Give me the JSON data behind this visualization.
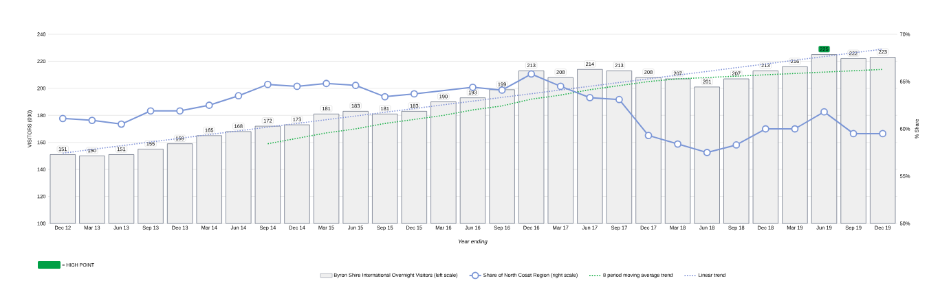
{
  "chart_data": {
    "type": "bar",
    "xlabel": "Year ending",
    "ylabel": "VISITORS (000)",
    "y2label": "% Share",
    "categories": [
      "Dec 12",
      "Mar 13",
      "Jun 13",
      "Sep 13",
      "Dec 13",
      "Mar 14",
      "Jun 14",
      "Sep 14",
      "Dec 14",
      "Mar 15",
      "Jun 15",
      "Sep 15",
      "Dec 15",
      "Mar 16",
      "Jun 16",
      "Sep 16",
      "Dec 16",
      "Mar 17",
      "Jun 17",
      "Sep 17",
      "Dec 17",
      "Mar 18",
      "Jun 18",
      "Sep 18",
      "Dec 18",
      "Mar 19",
      "Jun 19",
      "Sep 19",
      "Dec 19"
    ],
    "series": [
      {
        "name": "Byron Shire International Overnight Visitors (left scale)",
        "color": "#efefef",
        "values": [
          151,
          150,
          151,
          155,
          159,
          165,
          168,
          172,
          173,
          181,
          183,
          181,
          183,
          190,
          193,
          199,
          213,
          208,
          214,
          213,
          208,
          207,
          201,
          207,
          213,
          216,
          225,
          222,
          223
        ],
        "value_labels": [
          "151",
          "150",
          "151",
          "155",
          "159",
          "165",
          "168",
          "172",
          "173",
          "181",
          "183",
          "181",
          "183",
          "190",
          "193",
          "199",
          "213",
          "208",
          "214",
          "213",
          "208",
          "207",
          "201",
          "207",
          "213",
          "216",
          "225",
          "222",
          "223"
        ]
      },
      {
        "type": "line",
        "name": "Share of North Coast Region (right scale)",
        "color": "#7b96d6",
        "axis": "y2",
        "marker": "circle",
        "values": [
          61.1,
          60.9,
          60.5,
          61.9,
          61.9,
          62.5,
          63.5,
          64.7,
          64.5,
          64.8,
          64.6,
          63.4,
          63.7,
          null,
          64.4,
          64.1,
          65.8,
          64.5,
          63.3,
          63.1,
          59.3,
          58.4,
          57.5,
          58.3,
          60.0,
          60.0,
          61.8,
          59.5,
          59.5
        ]
      },
      {
        "type": "line",
        "name": "8 period moving average trend",
        "color": "#1db14b",
        "line_style": "dotted",
        "values": [
          null,
          null,
          null,
          null,
          null,
          null,
          null,
          159,
          163,
          167,
          170,
          174,
          177,
          180,
          184,
          187,
          192,
          195,
          199,
          202,
          205,
          207,
          208,
          209,
          210,
          211,
          212,
          213,
          214
        ]
      },
      {
        "type": "line",
        "name": "Linear trend",
        "color": "#8294d8",
        "line_style": "dotted",
        "values": [
          152,
          154.8,
          157.5,
          160.3,
          163,
          165.8,
          168.5,
          171.3,
          174,
          176.8,
          179.5,
          182.3,
          185,
          187.8,
          190.5,
          193.3,
          196,
          198.8,
          201.5,
          204.3,
          207,
          209.8,
          212.5,
          215.3,
          218,
          220.8,
          223.5,
          226.3,
          229
        ]
      }
    ],
    "ylim": [
      100,
      240
    ],
    "yticks": [
      100,
      120,
      140,
      160,
      180,
      200,
      220,
      240
    ],
    "y2lim": [
      50,
      70
    ],
    "y2ticks": [
      {
        "value": 50,
        "label": "50%"
      },
      {
        "value": 55,
        "label": "55%"
      },
      {
        "value": 60,
        "label": "60%"
      },
      {
        "value": 65,
        "label": "65%"
      },
      {
        "value": 70,
        "label": "70%"
      }
    ],
    "grid": "y",
    "legend": "bottom",
    "annotations": [
      "= HIGH POINT"
    ]
  }
}
